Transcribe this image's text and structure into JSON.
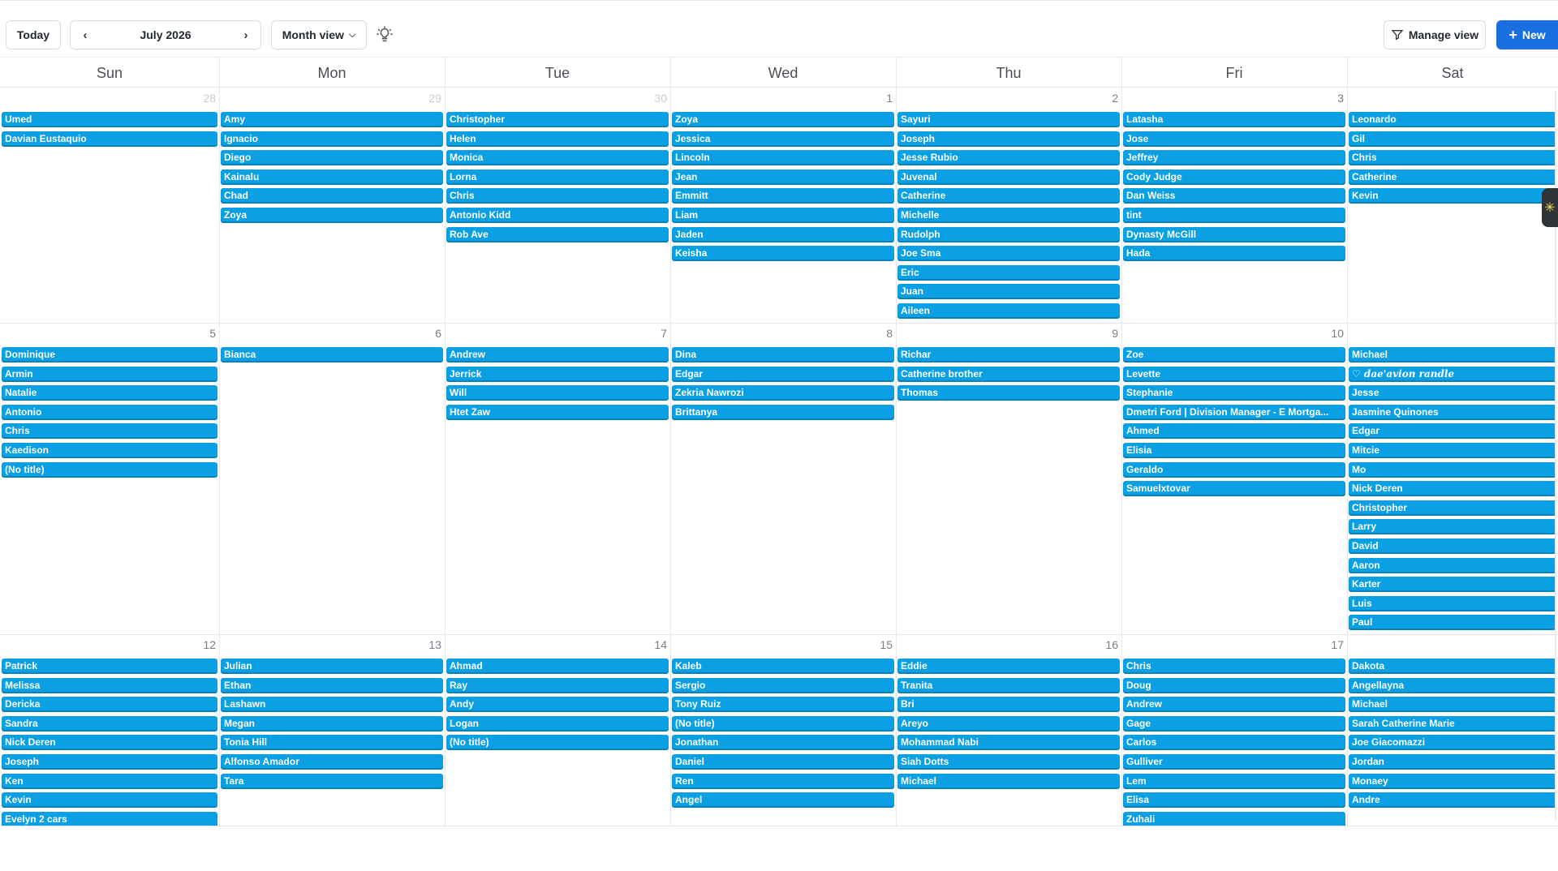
{
  "toolbar": {
    "today_label": "Today",
    "month_label": "July 2026",
    "view_label": "Month view",
    "manage_label": "Manage view",
    "new_label": "New",
    "accent_color": "#1a6fe0"
  },
  "event_color": "#0aa0e3",
  "day_names": [
    "Sun",
    "Mon",
    "Tue",
    "Wed",
    "Thu",
    "Fri",
    "Sat"
  ],
  "weeks": [
    {
      "days": [
        {
          "num": "28",
          "muted": true,
          "events": [
            "Umed",
            "Davian Eustaquio"
          ]
        },
        {
          "num": "29",
          "muted": true,
          "events": [
            "Amy",
            "Ignacio",
            "Diego",
            "Kainalu",
            "Chad",
            "Zoya"
          ]
        },
        {
          "num": "30",
          "muted": true,
          "events": [
            "Christopher",
            "Helen",
            "Monica",
            "Lorna",
            "Chris",
            "Antonio Kidd",
            "Rob Ave"
          ]
        },
        {
          "num": "1",
          "muted": false,
          "events": [
            "Zoya",
            "Jessica",
            "Lincoln",
            "Jean",
            "Emmitt",
            "Liam",
            "Jaden",
            "Keisha"
          ]
        },
        {
          "num": "2",
          "muted": false,
          "events": [
            "Sayuri",
            "Joseph",
            "Jesse Rubio",
            "Juvenal",
            "Catherine",
            "Michelle",
            "Rudolph",
            "Joe Sma",
            "Eric",
            "Juan",
            "Aileen"
          ]
        },
        {
          "num": "3",
          "muted": false,
          "events": [
            "Latasha",
            "Jose",
            "Jeffrey",
            "Cody Judge",
            "Dan Weiss",
            "tint",
            "Dynasty McGill",
            "Hada"
          ]
        },
        {
          "num": "",
          "muted": false,
          "events": [
            "Leonardo",
            "Gil",
            "Chris",
            "Catherine",
            "Kevin"
          ]
        }
      ]
    },
    {
      "days": [
        {
          "num": "5",
          "muted": false,
          "events": [
            "Dominique",
            "Armin",
            "Natalie",
            "Antonio",
            "Chris",
            "Kaedison",
            "(No title)"
          ]
        },
        {
          "num": "6",
          "muted": false,
          "events": [
            "Bianca"
          ]
        },
        {
          "num": "7",
          "muted": false,
          "events": [
            "Andrew",
            "Jerrick",
            "Will",
            "Htet Zaw"
          ]
        },
        {
          "num": "8",
          "muted": false,
          "events": [
            "Dina",
            "Edgar",
            "Zekria Nawrozi",
            "Brittanya"
          ]
        },
        {
          "num": "9",
          "muted": false,
          "events": [
            "Richar",
            "Catherine brother",
            "Thomas"
          ]
        },
        {
          "num": "10",
          "muted": false,
          "events": [
            "Zoe",
            "Levette",
            "Stephanie",
            "Dmetri Ford | Division Manager - E Mortga...",
            "Ahmed",
            "Elisia",
            "Geraldo",
            "Samuelxtovar"
          ]
        },
        {
          "num": "",
          "muted": false,
          "events": [
            "Michael",
            "♡ 𝒅𝒂𝒆'𝒂𝒗𝒊𝒐𝒏 𝒓𝒂𝒏𝒅𝒍𝒆",
            "Jesse",
            "Jasmine Quinones",
            "Edgar",
            "Mitcie",
            "Mo",
            "Nick Deren",
            "Christopher",
            "Larry",
            "David",
            "Aaron",
            "Karter",
            "Luis",
            "Paul"
          ]
        }
      ]
    },
    {
      "days": [
        {
          "num": "12",
          "muted": false,
          "events": [
            "Patrick",
            "Melissa",
            "Dericka",
            "Sandra",
            "Nick Deren",
            "Joseph",
            "Ken",
            "Kevin",
            "Evelyn 2 cars"
          ]
        },
        {
          "num": "13",
          "muted": false,
          "events": [
            "Julian",
            "Ethan",
            "Lashawn",
            "Megan",
            "Tonia Hill",
            "Alfonso Amador",
            "Tara"
          ]
        },
        {
          "num": "14",
          "muted": false,
          "events": [
            "Ahmad",
            "Ray",
            "Andy",
            "Logan",
            "(No title)"
          ]
        },
        {
          "num": "15",
          "muted": false,
          "events": [
            "Kaleb",
            "Sergio",
            "Tony Ruiz",
            "(No title)",
            "Jonathan",
            "Daniel",
            "Ren",
            "Angel"
          ]
        },
        {
          "num": "16",
          "muted": false,
          "events": [
            "Eddie",
            "Tranita",
            "Bri",
            "Areyo",
            "Mohammad Nabi",
            "Siah Dotts",
            "Michael"
          ]
        },
        {
          "num": "17",
          "muted": false,
          "events": [
            "Chris",
            "Doug",
            "Andrew",
            "Gage",
            "Carlos",
            "Gulliver",
            "Lem",
            "Elisa",
            "Zuhali"
          ]
        },
        {
          "num": "",
          "muted": false,
          "events": [
            "Dakota",
            "Angellayna",
            "Michael",
            "Sarah Catherine Marie",
            "Joe Giacomazzi",
            "Jordan",
            "Monaey",
            "Andre"
          ]
        }
      ]
    }
  ]
}
